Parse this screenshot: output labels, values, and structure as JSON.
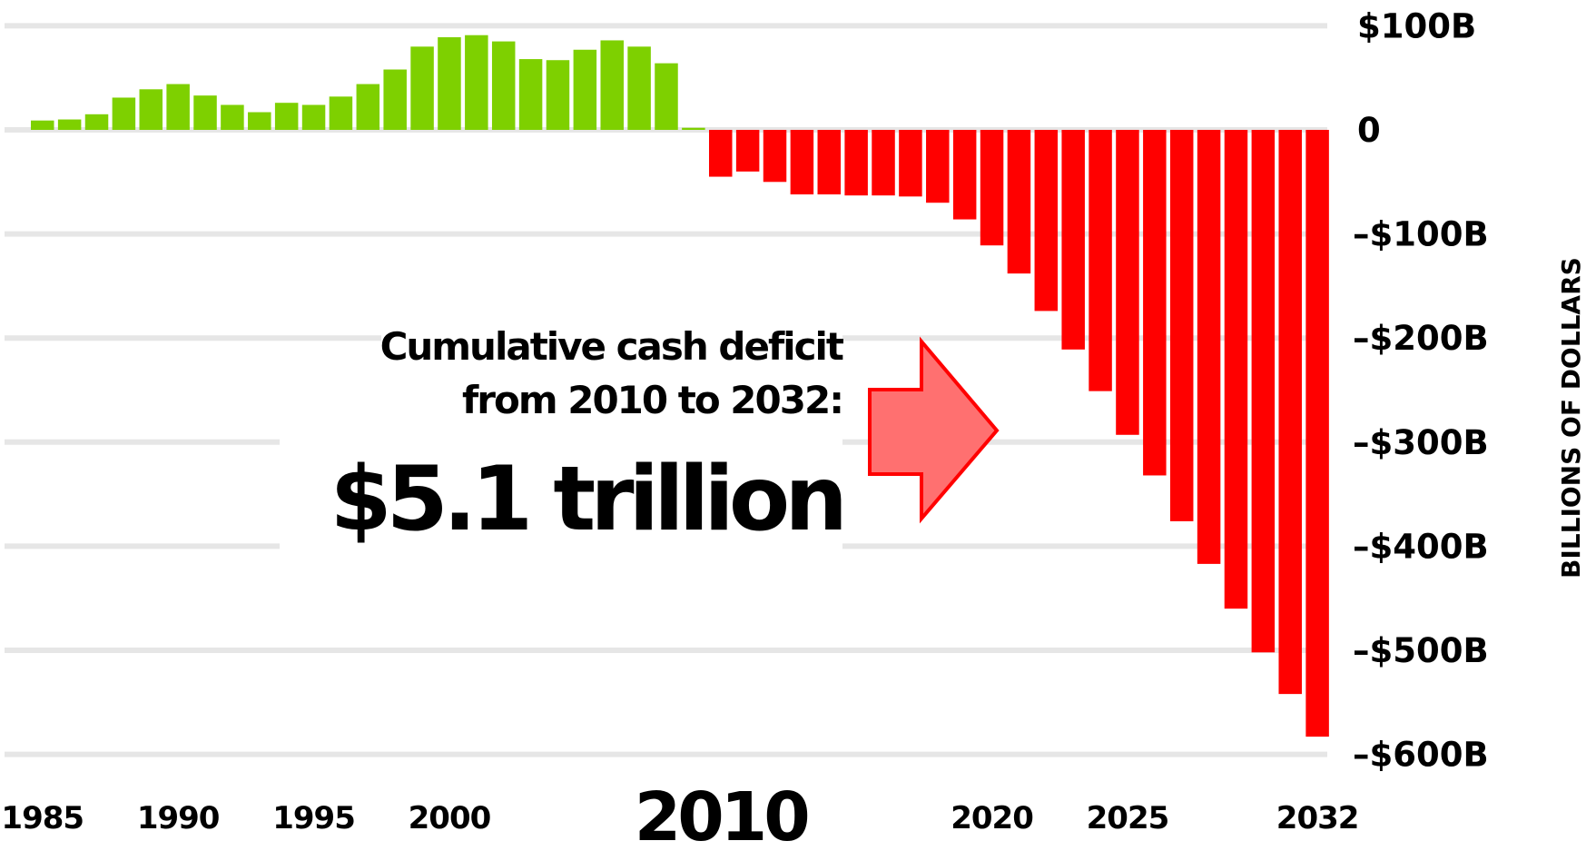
{
  "chart_data": {
    "type": "bar",
    "ylabel": "BILLIONS OF DOLLARS",
    "ylim": [
      -600,
      100
    ],
    "grid": true,
    "y_ticks": [
      {
        "value": 100,
        "label": "$100B"
      },
      {
        "value": 0,
        "label": "0"
      },
      {
        "value": -100,
        "label": "–$100B"
      },
      {
        "value": -200,
        "label": "–$200B"
      },
      {
        "value": -300,
        "label": "–$300B"
      },
      {
        "value": -400,
        "label": "–$400B"
      },
      {
        "value": -500,
        "label": "–$500B"
      },
      {
        "value": -600,
        "label": "–$600B"
      }
    ],
    "x_ticks": [
      {
        "year": 1985,
        "label": "1985",
        "big": false
      },
      {
        "year": 1990,
        "label": "1990",
        "big": false
      },
      {
        "year": 1995,
        "label": "1995",
        "big": false
      },
      {
        "year": 2000,
        "label": "2000",
        "big": false
      },
      {
        "year": 2010,
        "label": "2010",
        "big": true
      },
      {
        "year": 2020,
        "label": "2020",
        "big": false
      },
      {
        "year": 2025,
        "label": "2025",
        "big": false
      },
      {
        "year": 2032,
        "label": "2032",
        "big": false
      }
    ],
    "years": [
      1985,
      1986,
      1987,
      1988,
      1989,
      1990,
      1991,
      1992,
      1993,
      1994,
      1995,
      1996,
      1997,
      1998,
      1999,
      2000,
      2001,
      2002,
      2003,
      2004,
      2005,
      2006,
      2007,
      2008,
      2009,
      2010,
      2011,
      2012,
      2013,
      2014,
      2015,
      2016,
      2017,
      2018,
      2019,
      2020,
      2021,
      2022,
      2023,
      2024,
      2025,
      2026,
      2027,
      2028,
      2029,
      2030,
      2031,
      2032
    ],
    "values": [
      9,
      10,
      15,
      31,
      39,
      44,
      33,
      24,
      17,
      26,
      24,
      32,
      44,
      58,
      80,
      89,
      91,
      85,
      68,
      67,
      77,
      86,
      80,
      64,
      2,
      -45,
      -40,
      -50,
      -62,
      -62,
      -63,
      -63,
      -64,
      -70,
      -86,
      -111,
      -138,
      -174,
      -211,
      -251,
      -293,
      -332,
      -376,
      -417,
      -460,
      -502,
      -542,
      -583
    ],
    "colors": {
      "surplus": "#7ed000",
      "deficit": "#ff0000",
      "grid": "#e6e6e6"
    }
  },
  "annotation": {
    "line1": "Cumulative cash deficit",
    "line2": "from 2010 to 2032:",
    "amount": "$5.1 trillion"
  },
  "arrow": {
    "icon": "right-arrow-icon",
    "fill": "#ff7070",
    "stroke": "#ff0000"
  }
}
